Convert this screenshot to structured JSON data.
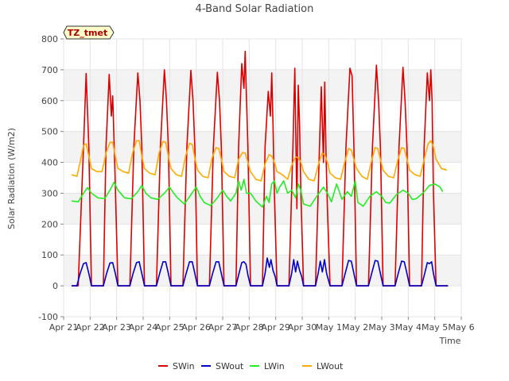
{
  "chart_data": {
    "type": "line",
    "title": "4-Band Solar Radiation",
    "xlabel": "Time",
    "ylabel": "Solar Radiation (W/m2)",
    "station_tag": "TZ_tmet",
    "ylim": [
      -100,
      800
    ],
    "yticks": [
      -100,
      0,
      100,
      200,
      300,
      400,
      500,
      600,
      700,
      800
    ],
    "xlim": [
      0,
      15
    ],
    "xticks": [
      {
        "x": 0,
        "label": "Apr 21"
      },
      {
        "x": 1,
        "label": "Apr 22"
      },
      {
        "x": 2,
        "label": "Apr 23"
      },
      {
        "x": 3,
        "label": "Apr 24"
      },
      {
        "x": 4,
        "label": "Apr 25"
      },
      {
        "x": 5,
        "label": "Apr 26"
      },
      {
        "x": 6,
        "label": "Apr 27"
      },
      {
        "x": 7,
        "label": "Apr 28"
      },
      {
        "x": 8,
        "label": "Apr 29"
      },
      {
        "x": 9,
        "label": "Apr 30"
      },
      {
        "x": 10,
        "label": "May 1"
      },
      {
        "x": 11,
        "label": "May 2"
      },
      {
        "x": 12,
        "label": "May 3"
      },
      {
        "x": 13,
        "label": "May 4"
      },
      {
        "x": 14,
        "label": "May 5"
      },
      {
        "x": 15,
        "label": "May 6"
      }
    ],
    "grid": true,
    "legend_position": "bottom",
    "series": [
      {
        "name": "SWin",
        "color": "#dd0000",
        "x": [
          0.3,
          0.55,
          0.75,
          0.85,
          0.95,
          1.05,
          1.25,
          1.5,
          1.6,
          1.72,
          1.8,
          1.85,
          1.92,
          2.05,
          2.25,
          2.5,
          2.65,
          2.8,
          2.88,
          2.95,
          3.05,
          3.25,
          3.5,
          3.65,
          3.8,
          3.88,
          3.95,
          4.05,
          4.25,
          4.5,
          4.65,
          4.8,
          4.88,
          4.95,
          5.05,
          5.25,
          5.5,
          5.65,
          5.8,
          5.88,
          5.95,
          6.05,
          6.25,
          6.5,
          6.6,
          6.72,
          6.8,
          6.85,
          6.9,
          6.95,
          7.05,
          7.25,
          7.5,
          7.6,
          7.72,
          7.8,
          7.85,
          7.9,
          7.95,
          8.05,
          8.25,
          8.5,
          8.65,
          8.72,
          8.8,
          8.85,
          8.9,
          8.95,
          9.05,
          9.25,
          9.5,
          9.65,
          9.72,
          9.8,
          9.85,
          9.9,
          9.95,
          10.05,
          10.25,
          10.5,
          10.65,
          10.8,
          10.88,
          10.95,
          11.05,
          11.25,
          11.5,
          11.65,
          11.8,
          11.88,
          11.95,
          12.05,
          12.25,
          12.5,
          12.65,
          12.8,
          12.88,
          12.95,
          13.05,
          13.25,
          13.5,
          13.6,
          13.72,
          13.8,
          13.85,
          13.9,
          13.95,
          14.05,
          14.25,
          14.5
        ],
        "y": [
          0,
          0,
          450,
          688,
          450,
          0,
          0,
          0,
          450,
          685,
          550,
          615,
          420,
          0,
          0,
          0,
          450,
          690,
          600,
          450,
          0,
          0,
          0,
          450,
          700,
          600,
          450,
          0,
          0,
          0,
          450,
          698,
          600,
          450,
          0,
          0,
          0,
          450,
          692,
          600,
          450,
          0,
          0,
          0,
          450,
          720,
          640,
          760,
          600,
          450,
          0,
          0,
          0,
          450,
          630,
          550,
          690,
          520,
          300,
          0,
          0,
          0,
          450,
          705,
          250,
          650,
          520,
          300,
          0,
          0,
          0,
          450,
          645,
          400,
          660,
          420,
          250,
          0,
          0,
          0,
          450,
          705,
          680,
          450,
          0,
          0,
          0,
          450,
          715,
          600,
          450,
          0,
          0,
          0,
          450,
          708,
          600,
          450,
          0,
          0,
          0,
          450,
          690,
          600,
          700,
          600,
          300,
          0,
          0,
          0
        ]
      },
      {
        "name": "SWout",
        "color": "#0000cc",
        "x": [
          0.3,
          0.5,
          0.62,
          0.75,
          0.85,
          0.95,
          1.05,
          1.25,
          1.5,
          1.62,
          1.75,
          1.85,
          1.95,
          2.05,
          2.25,
          2.5,
          2.62,
          2.75,
          2.85,
          2.95,
          3.05,
          3.25,
          3.5,
          3.62,
          3.75,
          3.85,
          3.95,
          4.05,
          4.25,
          4.5,
          4.62,
          4.75,
          4.85,
          4.95,
          5.05,
          5.25,
          5.5,
          5.62,
          5.75,
          5.85,
          5.95,
          6.05,
          6.25,
          6.5,
          6.6,
          6.72,
          6.8,
          6.88,
          6.95,
          7.05,
          7.25,
          7.5,
          7.6,
          7.68,
          7.76,
          7.82,
          7.9,
          7.98,
          8.05,
          8.25,
          8.5,
          8.6,
          8.68,
          8.75,
          8.82,
          8.9,
          8.98,
          9.05,
          9.25,
          9.5,
          9.6,
          9.68,
          9.76,
          9.84,
          9.92,
          10.05,
          10.25,
          10.5,
          10.62,
          10.75,
          10.85,
          10.95,
          11.05,
          11.25,
          11.5,
          11.62,
          11.75,
          11.85,
          11.95,
          12.05,
          12.25,
          12.5,
          12.62,
          12.75,
          12.85,
          12.95,
          13.05,
          13.25,
          13.5,
          13.62,
          13.72,
          13.8,
          13.88,
          13.95,
          14.05,
          14.25,
          14.5
        ],
        "y": [
          0,
          0,
          40,
          72,
          75,
          40,
          0,
          0,
          0,
          40,
          74,
          75,
          40,
          0,
          0,
          0,
          40,
          75,
          78,
          40,
          0,
          0,
          0,
          40,
          78,
          78,
          40,
          0,
          0,
          0,
          40,
          78,
          78,
          40,
          0,
          0,
          0,
          40,
          78,
          78,
          40,
          0,
          0,
          0,
          35,
          75,
          78,
          70,
          35,
          0,
          0,
          0,
          40,
          90,
          60,
          85,
          50,
          30,
          0,
          0,
          0,
          40,
          85,
          45,
          80,
          50,
          30,
          0,
          0,
          0,
          40,
          80,
          45,
          85,
          40,
          0,
          0,
          0,
          40,
          82,
          80,
          40,
          0,
          0,
          0,
          40,
          82,
          80,
          40,
          0,
          0,
          0,
          40,
          80,
          78,
          40,
          0,
          0,
          0,
          40,
          75,
          72,
          78,
          40,
          0,
          0,
          0
        ]
      },
      {
        "name": "LWin",
        "color": "#22ee22",
        "x": [
          0.3,
          0.55,
          0.75,
          0.9,
          1.05,
          1.3,
          1.55,
          1.75,
          1.9,
          2.05,
          2.3,
          2.55,
          2.8,
          2.95,
          3.1,
          3.3,
          3.55,
          3.8,
          4.0,
          4.15,
          4.3,
          4.55,
          4.8,
          5.0,
          5.15,
          5.3,
          5.55,
          5.8,
          6.0,
          6.15,
          6.3,
          6.5,
          6.6,
          6.7,
          6.8,
          6.9,
          7.05,
          7.25,
          7.5,
          7.65,
          7.75,
          7.85,
          7.95,
          8.05,
          8.15,
          8.3,
          8.45,
          8.6,
          8.75,
          8.85,
          8.95,
          9.05,
          9.3,
          9.55,
          9.8,
          9.95,
          10.1,
          10.3,
          10.5,
          10.7,
          10.85,
          11.0,
          11.1,
          11.3,
          11.55,
          11.8,
          12.0,
          12.15,
          12.3,
          12.55,
          12.8,
          13.0,
          13.15,
          13.3,
          13.55,
          13.8,
          14.0,
          14.2,
          14.3
        ],
        "y": [
          275,
          272,
          300,
          318,
          300,
          285,
          283,
          310,
          335,
          310,
          285,
          282,
          305,
          325,
          300,
          285,
          280,
          300,
          320,
          300,
          285,
          265,
          295,
          320,
          290,
          270,
          260,
          285,
          310,
          290,
          275,
          300,
          340,
          310,
          345,
          300,
          300,
          275,
          255,
          290,
          270,
          330,
          340,
          300,
          320,
          340,
          300,
          310,
          285,
          330,
          310,
          265,
          258,
          290,
          320,
          300,
          272,
          330,
          280,
          305,
          290,
          340,
          270,
          258,
          290,
          305,
          290,
          270,
          268,
          295,
          310,
          300,
          280,
          282,
          300,
          325,
          330,
          320,
          305
        ]
      },
      {
        "name": "LWout",
        "color": "#ffaa00",
        "x": [
          0.3,
          0.5,
          0.62,
          0.75,
          0.85,
          0.95,
          1.05,
          1.25,
          1.45,
          1.6,
          1.75,
          1.85,
          1.95,
          2.05,
          2.25,
          2.45,
          2.6,
          2.75,
          2.85,
          2.95,
          3.05,
          3.25,
          3.45,
          3.6,
          3.75,
          3.85,
          3.95,
          4.05,
          4.25,
          4.45,
          4.6,
          4.75,
          4.85,
          4.95,
          5.05,
          5.25,
          5.45,
          5.6,
          5.75,
          5.85,
          5.95,
          6.05,
          6.25,
          6.45,
          6.6,
          6.75,
          6.85,
          6.95,
          7.05,
          7.25,
          7.45,
          7.6,
          7.75,
          7.85,
          7.95,
          8.05,
          8.25,
          8.45,
          8.6,
          8.75,
          8.85,
          8.95,
          9.05,
          9.25,
          9.45,
          9.6,
          9.75,
          9.85,
          9.95,
          10.05,
          10.25,
          10.45,
          10.6,
          10.75,
          10.85,
          10.95,
          11.05,
          11.25,
          11.45,
          11.6,
          11.75,
          11.85,
          11.95,
          12.05,
          12.25,
          12.45,
          12.6,
          12.75,
          12.85,
          12.95,
          13.05,
          13.25,
          13.45,
          13.6,
          13.75,
          13.85,
          13.95,
          14.05,
          14.25,
          14.45
        ],
        "y": [
          360,
          355,
          400,
          455,
          460,
          420,
          380,
          370,
          370,
          430,
          465,
          465,
          420,
          380,
          370,
          365,
          430,
          470,
          470,
          420,
          380,
          365,
          360,
          430,
          468,
          465,
          420,
          380,
          360,
          355,
          420,
          462,
          458,
          415,
          375,
          355,
          350,
          415,
          448,
          445,
          410,
          370,
          355,
          350,
          410,
          432,
          430,
          400,
          370,
          345,
          340,
          395,
          425,
          420,
          400,
          370,
          360,
          345,
          390,
          418,
          415,
          400,
          370,
          345,
          340,
          390,
          430,
          425,
          400,
          365,
          350,
          345,
          400,
          445,
          440,
          410,
          380,
          355,
          345,
          400,
          448,
          445,
          410,
          375,
          355,
          350,
          405,
          448,
          445,
          410,
          375,
          360,
          355,
          410,
          460,
          470,
          450,
          410,
          380,
          375
        ]
      }
    ]
  }
}
